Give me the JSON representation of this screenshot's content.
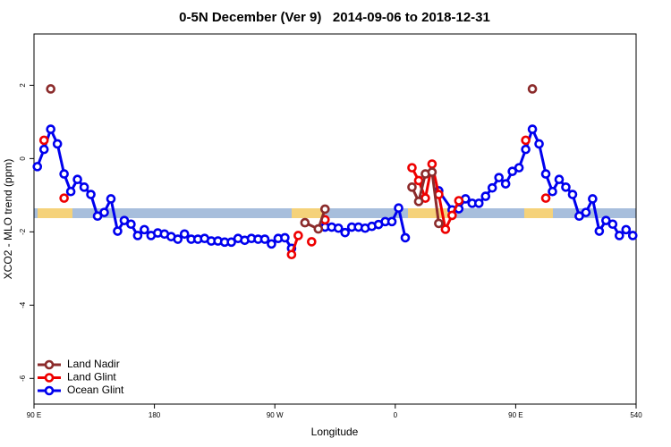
{
  "chart_data": {
    "type": "line",
    "title": "0-5N December (Ver 9)   2014-09-06 to 2018-12-31",
    "x_label": "Longitude",
    "y_label": "XCO2 - MLO trend (ppm)",
    "xlim": [
      90,
      540
    ],
    "ylim": [
      -6.7,
      3.4
    ],
    "xticks": [
      {
        "value": 90,
        "label": "90 E"
      },
      180,
      {
        "value": 270,
        "label": "90 W"
      },
      {
        "value": 360,
        "label": "0"
      },
      {
        "value": 450,
        "label": "90 E"
      },
      540
    ],
    "yticks": [
      2,
      0,
      -2,
      -4,
      -6
    ],
    "legend": "bottom-left",
    "series": [
      {
        "name": "Land Nadir",
        "color": "#8b2b2b",
        "x": [
          102.5,
          null,
          292.5,
          302.5,
          307.5,
          null,
          372.5,
          377.5,
          382.5,
          387.5,
          392.5,
          null,
          462.5
        ],
        "values": [
          1.9,
          null,
          -1.75,
          -1.92,
          -1.38,
          null,
          -0.78,
          -1.17,
          -0.42,
          -0.37,
          -1.77,
          null,
          1.9
        ]
      },
      {
        "name": "Land Glint",
        "color": "#ee0000",
        "x": [
          97.5,
          null,
          112.5,
          null,
          282.5,
          287.5,
          null,
          297.5,
          null,
          307.5,
          null,
          372.5,
          377.5,
          382.5,
          387.5,
          392.5,
          397.5,
          402.5,
          407.5,
          null,
          457.5,
          null,
          472.5
        ],
        "values": [
          0.5,
          null,
          -1.08,
          null,
          -2.62,
          -2.1,
          null,
          -2.27,
          null,
          -1.67,
          null,
          -0.25,
          -0.6,
          -1.08,
          -0.15,
          -0.98,
          -1.93,
          -1.55,
          -1.15,
          null,
          0.5,
          null,
          -1.08
        ]
      },
      {
        "name": "Ocean Glint",
        "color": "#0000ee",
        "x": [
          92.5,
          97.5,
          102.5,
          107.5,
          112.5,
          117.5,
          122.5,
          127.5,
          132.5,
          137.5,
          142.5,
          147.5,
          152.5,
          157.5,
          162.5,
          167.5,
          172.5,
          177.5,
          182.5,
          187.5,
          192.5,
          197.5,
          202.5,
          207.5,
          212.5,
          217.5,
          222.5,
          227.5,
          232.5,
          237.5,
          242.5,
          247.5,
          252.5,
          257.5,
          262.5,
          267.5,
          272.5,
          277.5,
          282.5,
          null,
          307.5,
          312.5,
          317.5,
          322.5,
          327.5,
          332.5,
          337.5,
          342.5,
          347.5,
          352.5,
          357.5,
          362.5,
          367.5,
          null,
          392.5,
          402.5,
          407.5,
          412.5,
          417.5,
          422.5,
          427.5,
          432.5,
          437.5,
          442.5,
          447.5,
          452.5,
          457.5,
          462.5,
          467.5,
          472.5,
          477.5,
          482.5,
          487.5,
          492.5,
          497.5,
          502.5,
          507.5,
          512.5,
          517.5,
          522.5,
          527.5,
          532.5,
          537.5
        ],
        "values": [
          -0.22,
          0.25,
          0.8,
          0.4,
          -0.42,
          -0.9,
          -0.57,
          -0.78,
          -0.98,
          -1.57,
          -1.47,
          -1.1,
          -1.98,
          -1.69,
          -1.79,
          -2.1,
          -1.94,
          -2.1,
          -2.03,
          -2.06,
          -2.13,
          -2.2,
          -2.06,
          -2.2,
          -2.2,
          -2.18,
          -2.25,
          -2.25,
          -2.28,
          -2.28,
          -2.18,
          -2.23,
          -2.18,
          -2.2,
          -2.2,
          -2.33,
          -2.18,
          -2.16,
          -2.45,
          null,
          -1.87,
          -1.87,
          -1.9,
          -2.02,
          -1.87,
          -1.87,
          -1.9,
          -1.85,
          -1.8,
          -1.72,
          -1.72,
          -1.35,
          -2.16,
          null,
          -0.88,
          -1.4,
          -1.37,
          -1.1,
          -1.22,
          -1.22,
          -1.03,
          -0.8,
          -0.52,
          -0.69,
          -0.35,
          -0.25,
          0.25,
          0.8,
          0.4,
          -0.42,
          -0.9,
          -0.57,
          -0.78,
          -0.98,
          -1.57,
          -1.47,
          -1.1,
          -1.98,
          -1.69,
          -1.79,
          -2.1,
          -1.94,
          -2.1
        ]
      }
    ]
  }
}
